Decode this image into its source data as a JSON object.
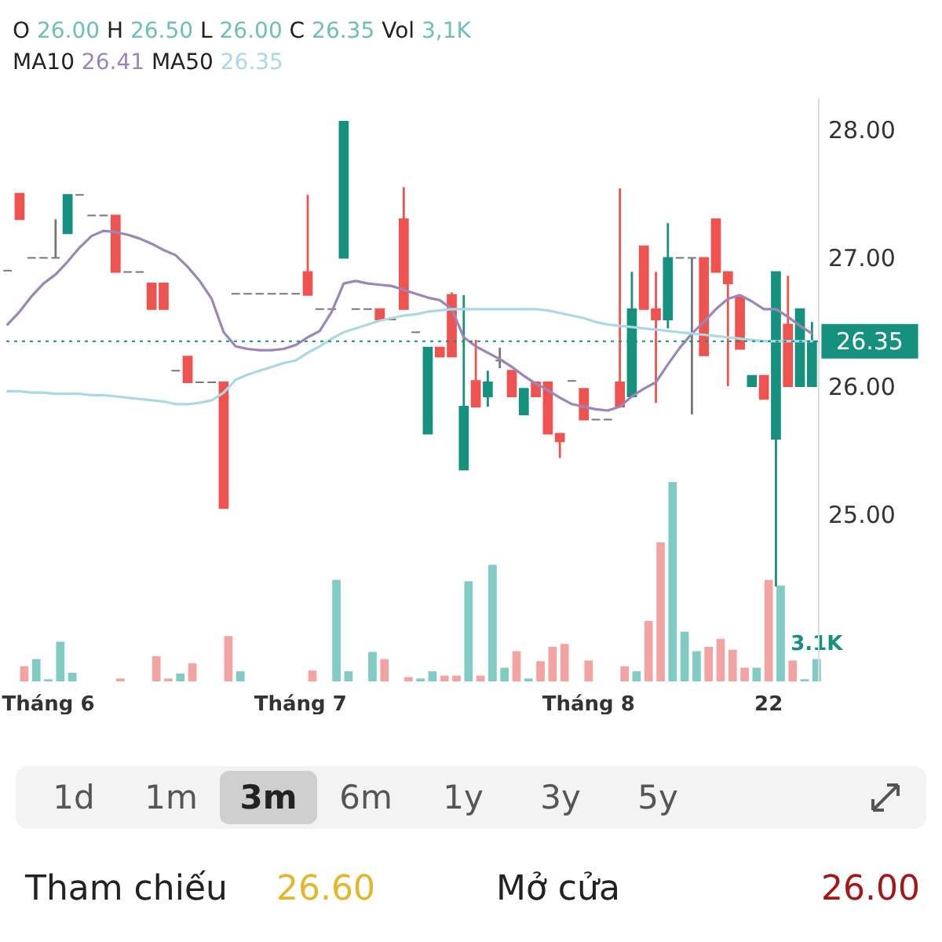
{
  "chart_data": [
    {
      "type": "candlestick",
      "tick_labels": "y",
      "annotations": [
        "O 26.00 H 26.50 L 26.00 C 26.35 Vol 3,1K",
        "MA10 26.41 MA50 26.35"
      ],
      "categories": [
        null,
        null,
        null,
        null,
        null,
        null,
        null,
        null,
        null,
        null,
        null,
        null,
        null,
        null,
        null,
        null,
        null,
        null,
        null,
        null,
        null,
        null,
        null,
        null,
        null,
        null,
        null,
        null,
        null,
        null,
        null,
        null,
        null,
        null,
        null,
        null,
        null,
        null,
        null,
        null,
        null,
        null,
        null,
        null,
        null,
        null,
        null,
        null,
        null,
        null,
        null,
        null,
        null,
        null,
        null,
        null,
        null,
        null,
        null,
        null,
        null,
        null,
        null,
        null,
        null,
        null,
        null,
        null
      ],
      "ohlc": [
        [
          26.9,
          26.9,
          26.9,
          26.9
        ],
        [
          27.5,
          27.5,
          27.3,
          27.3
        ],
        [
          27.0,
          27.0,
          27.0,
          27.0
        ],
        [
          27.0,
          27.0,
          27.0,
          27.0
        ],
        [
          27.0,
          27.3,
          27.0,
          27.0
        ],
        [
          27.19,
          27.49,
          27.19,
          27.49
        ],
        [
          27.49,
          27.49,
          27.49,
          27.49
        ],
        [
          27.33,
          27.33,
          27.33,
          27.33
        ],
        [
          27.33,
          27.33,
          27.33,
          27.33
        ],
        [
          27.33,
          27.33,
          26.89,
          26.89
        ],
        [
          26.89,
          26.89,
          26.89,
          26.89
        ],
        [
          26.89,
          26.89,
          26.89,
          26.89
        ],
        [
          26.8,
          26.8,
          26.6,
          26.6
        ],
        [
          26.8,
          26.8,
          26.6,
          26.6
        ],
        [
          26.12,
          26.12,
          26.12,
          26.12
        ],
        [
          26.23,
          26.23,
          26.03,
          26.03
        ],
        [
          26.03,
          26.03,
          26.03,
          26.03
        ],
        [
          26.03,
          26.03,
          26.03,
          26.03
        ],
        [
          26.03,
          26.03,
          25.05,
          25.05
        ],
        [
          26.72,
          26.72,
          26.72,
          26.72
        ],
        [
          26.72,
          26.72,
          26.72,
          26.72
        ],
        [
          26.72,
          26.72,
          26.72,
          26.72
        ],
        [
          26.72,
          26.72,
          26.72,
          26.72
        ],
        [
          26.72,
          26.72,
          26.72,
          26.72
        ],
        [
          26.72,
          26.72,
          26.72,
          26.72
        ],
        [
          26.89,
          27.49,
          26.71,
          26.71
        ],
        [
          26.6,
          26.6,
          26.6,
          26.6
        ],
        [
          26.6,
          26.6,
          26.6,
          26.6
        ],
        [
          27.0,
          28.06,
          27.0,
          28.06
        ],
        [
          26.6,
          26.6,
          26.6,
          26.6
        ],
        [
          26.6,
          26.6,
          26.6,
          26.6
        ],
        [
          26.6,
          26.6,
          26.52,
          26.52
        ],
        [
          26.52,
          26.52,
          26.52,
          26.52
        ],
        [
          27.3,
          27.55,
          26.6,
          26.6
        ],
        [
          26.42,
          26.42,
          26.42,
          26.42
        ],
        [
          25.63,
          26.3,
          25.63,
          26.3
        ],
        [
          26.3,
          26.3,
          26.23,
          26.23
        ],
        [
          26.71,
          26.73,
          26.23,
          26.23
        ],
        [
          25.35,
          26.71,
          25.35,
          25.84
        ],
        [
          26.04,
          26.36,
          25.84,
          25.84
        ],
        [
          25.92,
          26.12,
          25.84,
          26.03
        ],
        [
          26.2,
          26.3,
          26.14,
          26.2
        ],
        [
          26.12,
          26.12,
          25.92,
          25.92
        ],
        [
          25.78,
          25.98,
          25.78,
          25.98
        ],
        [
          26.03,
          26.03,
          25.92,
          25.92
        ],
        [
          26.03,
          26.03,
          25.63,
          25.63
        ],
        [
          25.63,
          25.63,
          25.44,
          25.57
        ],
        [
          26.04,
          26.04,
          26.04,
          26.04
        ],
        [
          25.98,
          25.98,
          25.74,
          25.74
        ],
        [
          25.74,
          25.74,
          25.74,
          25.74
        ],
        [
          25.74,
          25.74,
          25.74,
          25.74
        ],
        [
          26.03,
          27.54,
          25.84,
          25.84
        ],
        [
          25.92,
          26.89,
          25.92,
          26.6
        ],
        [
          27.09,
          27.09,
          26.6,
          26.6
        ],
        [
          26.6,
          26.89,
          25.87,
          26.52
        ],
        [
          26.52,
          27.27,
          26.45,
          27.0
        ],
        [
          27.0,
          27.0,
          27.0,
          27.0
        ],
        [
          27.0,
          27.0,
          25.78,
          27.0
        ],
        [
          27.0,
          27.0,
          26.24,
          26.24
        ],
        [
          27.3,
          27.3,
          26.89,
          26.89
        ],
        [
          26.89,
          26.89,
          26.0,
          26.8
        ],
        [
          26.69,
          26.69,
          26.29,
          26.29
        ],
        [
          26.0,
          26.08,
          26.0,
          26.08
        ],
        [
          26.08,
          26.08,
          25.9,
          25.9
        ],
        [
          25.59,
          26.89,
          24.44,
          26.89
        ],
        [
          26.48,
          26.86,
          26.0,
          26.0
        ],
        [
          26.0,
          26.6,
          26.0,
          26.6
        ],
        [
          26.0,
          26.5,
          26.0,
          26.35
        ]
      ],
      "colors": [
        "#777777",
        "#ef5350",
        "#777777",
        "#777777",
        "#777777",
        "#17917f",
        "#777777",
        "#777777",
        "#777777",
        "#ef5350",
        "#777777",
        "#777777",
        "#ef5350",
        "#ef5350",
        "#777777",
        "#ef5350",
        "#777777",
        "#777777",
        "#ef5350",
        "#777777",
        "#777777",
        "#777777",
        "#777777",
        "#777777",
        "#777777",
        "#ef5350",
        "#777777",
        "#777777",
        "#17917f",
        "#777777",
        "#777777",
        "#ef5350",
        "#777777",
        "#ef5350",
        "#777777",
        "#17917f",
        "#ef5350",
        "#ef5350",
        "#17917f",
        "#ef5350",
        "#17917f",
        "#777777",
        "#ef5350",
        "#17917f",
        "#ef5350",
        "#ef5350",
        "#ef5350",
        "#777777",
        "#ef5350",
        "#777777",
        "#777777",
        "#ef5350",
        "#17917f",
        "#ef5350",
        "#ef5350",
        "#17917f",
        "#777777",
        "#777777",
        "#ef5350",
        "#ef5350",
        "#ef5350",
        "#ef5350",
        "#17917f",
        "#ef5350",
        "#17917f",
        "#ef5350",
        "#17917f",
        "#17917f"
      ],
      "series": [
        {
          "type": "line",
          "color": "#9a86b8",
          "values": [
            26.48,
            26.58,
            26.7,
            26.8,
            26.87,
            26.97,
            27.08,
            27.17,
            27.21,
            27.2,
            27.18,
            27.15,
            27.11,
            27.06,
            27.02,
            26.93,
            26.82,
            26.68,
            26.42,
            26.31,
            26.29,
            26.28,
            26.28,
            26.29,
            26.32,
            26.38,
            26.43,
            26.58,
            26.8,
            26.82,
            26.8,
            26.79,
            26.78,
            26.75,
            26.72,
            26.69,
            26.67,
            26.6,
            26.38,
            26.31,
            26.26,
            26.21,
            26.15,
            26.08,
            26.02,
            25.97,
            25.91,
            25.86,
            25.84,
            25.82,
            25.81,
            25.84,
            25.92,
            25.98,
            26.03,
            26.17,
            26.3,
            26.41,
            26.5,
            26.6,
            26.68,
            26.71,
            26.66,
            26.6,
            26.6,
            26.54,
            26.47,
            26.41
          ]
        },
        {
          "type": "line",
          "color": "#a9d9e3",
          "values": [
            25.96,
            25.96,
            25.95,
            25.95,
            25.94,
            25.94,
            25.94,
            25.93,
            25.93,
            25.92,
            25.91,
            25.9,
            25.89,
            25.88,
            25.86,
            25.86,
            25.87,
            25.89,
            25.95,
            26.05,
            26.09,
            26.12,
            26.15,
            26.18,
            26.2,
            26.26,
            26.31,
            26.37,
            26.42,
            26.45,
            26.48,
            26.51,
            26.53,
            26.55,
            26.56,
            26.58,
            26.59,
            26.6,
            26.6,
            26.6,
            26.6,
            26.6,
            26.6,
            26.6,
            26.6,
            26.59,
            26.57,
            26.55,
            26.53,
            26.5,
            26.48,
            26.47,
            26.46,
            26.45,
            26.44,
            26.43,
            26.42,
            26.41,
            26.4,
            26.39,
            26.38,
            26.37,
            26.36,
            26.35,
            26.35,
            26.35,
            26.35,
            26.35
          ]
        }
      ],
      "ylim": [
        23.7,
        28.25
      ],
      "yticks": [
        {
          "value": 25,
          "label": "25.00"
        },
        {
          "value": 26,
          "label": "26.00"
        },
        {
          "value": 27,
          "label": "27.00"
        },
        {
          "value": 28,
          "label": "28.00"
        }
      ],
      "ref_lines": [
        {
          "axis": "y",
          "value": 26.35,
          "label": "26.35",
          "color": "#17917f",
          "line_style": "dotted"
        }
      ]
    },
    {
      "type": "bar",
      "tick_labels": "x",
      "categories": [
        null,
        null,
        null,
        "Tháng 6",
        null,
        null,
        null,
        null,
        null,
        null,
        null,
        null,
        null,
        null,
        null,
        null,
        null,
        null,
        null,
        null,
        null,
        null,
        null,
        null,
        "Tháng 7",
        null,
        null,
        null,
        null,
        null,
        null,
        null,
        null,
        null,
        null,
        null,
        null,
        null,
        null,
        null,
        null,
        null,
        null,
        null,
        null,
        null,
        null,
        null,
        "Tháng 8",
        null,
        null,
        null,
        null,
        null,
        null,
        null,
        null,
        null,
        null,
        null,
        null,
        null,
        null,
        "22",
        null,
        null,
        null,
        null
      ],
      "values": [
        0,
        2.1,
        3.1,
        0.3,
        5.5,
        1.2,
        0,
        0,
        0,
        0.4,
        0,
        0,
        3.5,
        0.4,
        1.1,
        2.5,
        0,
        0,
        6.3,
        1.4,
        0,
        0,
        0,
        0,
        0,
        1.5,
        0,
        14.1,
        1.4,
        0,
        4.1,
        3.1,
        0,
        0.6,
        0.4,
        1.4,
        0.8,
        0.8,
        13.9,
        0.8,
        16.2,
        1.9,
        4.2,
        0.4,
        2.8,
        4.8,
        5.2,
        0,
        2.9,
        0,
        0,
        2.1,
        1.4,
        8.4,
        19.3,
        27.7,
        6.9,
        4.2,
        4.8,
        5.9,
        4.4,
        1.9,
        1.9,
        14.1,
        13.3,
        2.9,
        0.3,
        3.1
      ],
      "colors": [
        "#f4a3a3",
        "#f4a3a3",
        "#80cbc4",
        "#80cbc4",
        "#80cbc4",
        "#80cbc4",
        "#80cbc4",
        "#80cbc4",
        "#80cbc4",
        "#f4a3a3",
        "#f4a3a3",
        "#f4a3a3",
        "#f4a3a3",
        "#f4a3a3",
        "#80cbc4",
        "#f4a3a3",
        "#f4a3a3",
        "#f4a3a3",
        "#f4a3a3",
        "#80cbc4",
        "#80cbc4",
        "#80cbc4",
        "#80cbc4",
        "#80cbc4",
        "#80cbc4",
        "#f4a3a3",
        "#80cbc4",
        "#80cbc4",
        "#80cbc4",
        "#80cbc4",
        "#80cbc4",
        "#f4a3a3",
        "#f4a3a3",
        "#f4a3a3",
        "#80cbc4",
        "#80cbc4",
        "#f4a3a3",
        "#f4a3a3",
        "#80cbc4",
        "#f4a3a3",
        "#80cbc4",
        "#80cbc4",
        "#f4a3a3",
        "#80cbc4",
        "#f4a3a3",
        "#f4a3a3",
        "#f4a3a3",
        "#f4a3a3",
        "#f4a3a3",
        "#f4a3a3",
        "#f4a3a3",
        "#f4a3a3",
        "#80cbc4",
        "#f4a3a3",
        "#f4a3a3",
        "#80cbc4",
        "#80cbc4",
        "#80cbc4",
        "#f4a3a3",
        "#f4a3a3",
        "#f4a3a3",
        "#f4a3a3",
        "#80cbc4",
        "#f4a3a3",
        "#80cbc4",
        "#f4a3a3",
        "#80cbc4",
        "#80cbc4"
      ],
      "value_labels": [
        null,
        null,
        null,
        null,
        null,
        null,
        null,
        null,
        null,
        null,
        null,
        null,
        null,
        null,
        null,
        null,
        null,
        null,
        null,
        null,
        null,
        null,
        null,
        null,
        null,
        null,
        null,
        null,
        null,
        null,
        null,
        null,
        null,
        null,
        null,
        null,
        null,
        null,
        null,
        null,
        null,
        null,
        null,
        null,
        null,
        null,
        null,
        null,
        null,
        null,
        null,
        null,
        null,
        null,
        null,
        null,
        null,
        null,
        null,
        null,
        null,
        null,
        null,
        null,
        null,
        null,
        null,
        "3.1K"
      ]
    },
    {
      "type": "other",
      "annotations": [
        "1d",
        "1m",
        "3m",
        "6m",
        "1y",
        "3y",
        "5y",
        "Tham chiếu",
        "26.60",
        "Mở cửa",
        "26.00"
      ]
    }
  ]
}
